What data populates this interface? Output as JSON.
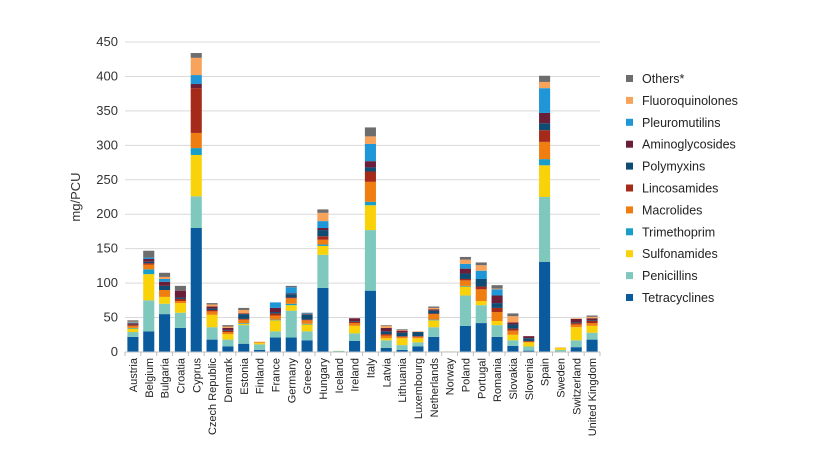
{
  "chart_data": {
    "type": "bar",
    "stacked": true,
    "title": "",
    "xlabel": "",
    "ylabel": "mg/PCU",
    "ylim": [
      0,
      450
    ],
    "yticks": [
      0,
      50,
      100,
      150,
      200,
      250,
      300,
      350,
      400,
      450
    ],
    "grid": true,
    "legend_position": "right",
    "categories": [
      "Austria",
      "Belgium",
      "Bulgaria",
      "Croatia",
      "Cyprus",
      "Czech Republic",
      "Denmark",
      "Estonia",
      "Finland",
      "France",
      "Germany",
      "Greece",
      "Hungary",
      "Iceland",
      "Ireland",
      "Italy",
      "Latvia",
      "Lithuania",
      "Luxembourg",
      "Netherlands",
      "Norway",
      "Poland",
      "Portugal",
      "Romania",
      "Slovakia",
      "Slovenia",
      "Spain",
      "Sweden",
      "Switzerland",
      "United Kingdom"
    ],
    "series": [
      {
        "name": "Tetracyclines",
        "color": "#0a5a9e",
        "values": [
          22,
          30,
          55,
          35,
          180,
          18,
          8,
          12,
          3,
          21,
          21,
          17,
          93,
          0.5,
          16,
          89,
          6,
          3,
          8,
          22,
          0.3,
          38,
          42,
          22,
          9,
          2,
          131,
          0.5,
          7,
          18
        ]
      },
      {
        "name": "Penicillins",
        "color": "#7ec8be",
        "values": [
          7,
          45,
          15,
          22,
          46,
          18,
          10,
          27,
          8,
          9,
          39,
          13,
          48,
          1,
          11,
          88,
          11,
          7,
          6,
          14,
          0.5,
          44,
          26,
          17,
          8,
          6,
          94,
          2.5,
          10,
          10
        ]
      },
      {
        "name": "Sulfonamides",
        "color": "#fad20a",
        "values": [
          5,
          38,
          10,
          14,
          60,
          18,
          8,
          2,
          2,
          16,
          8,
          10,
          13,
          0.2,
          11,
          36,
          3,
          10,
          6,
          10,
          0.1,
          13,
          6,
          6,
          8,
          6,
          46,
          3,
          19,
          10
        ]
      },
      {
        "name": "Trimethoprim",
        "color": "#189ec9",
        "values": [
          1,
          7,
          0,
          0,
          10,
          0,
          0,
          1,
          0,
          1,
          2,
          1,
          2,
          0,
          0,
          5,
          0,
          0,
          0,
          1,
          0,
          1,
          0,
          0,
          0,
          0,
          9,
          0,
          0,
          0
        ]
      },
      {
        "name": "Macrolides",
        "color": "#ef7d10",
        "values": [
          3,
          7,
          10,
          3,
          22,
          5,
          3,
          5,
          1,
          6,
          8,
          5,
          7,
          0,
          4,
          29,
          4,
          2,
          2,
          8,
          0,
          8,
          17,
          13,
          6,
          1,
          25,
          0.5,
          4,
          4
        ]
      },
      {
        "name": "Lincosamides",
        "color": "#a52a1a",
        "values": [
          2,
          2,
          0,
          3,
          65,
          2,
          2,
          1,
          0,
          3,
          1,
          1,
          5,
          0,
          2,
          15,
          2,
          1,
          1,
          1,
          0,
          2,
          4,
          6,
          3,
          1,
          17,
          0,
          2,
          3
        ]
      },
      {
        "name": "Polymyxins",
        "color": "#0e4c73",
        "values": [
          1,
          2,
          6,
          2,
          0,
          2,
          1,
          7,
          0,
          2,
          5,
          7,
          9,
          0,
          1,
          6,
          4,
          5,
          6,
          4,
          0,
          8,
          11,
          7,
          6,
          4,
          10,
          0,
          1,
          1
        ]
      },
      {
        "name": "Aminoglycosides",
        "color": "#6b1e38",
        "values": [
          1,
          4,
          6,
          10,
          6,
          3,
          3,
          1,
          0,
          6,
          1,
          1,
          3,
          0,
          4,
          9,
          5,
          3,
          0,
          2,
          0,
          7,
          0,
          11,
          3,
          3,
          15,
          0,
          5,
          3
        ]
      },
      {
        "name": "Pleuromutilins",
        "color": "#1e96d7",
        "values": [
          1,
          2,
          4,
          0,
          13,
          0,
          0,
          0,
          0,
          8,
          9,
          1,
          10,
          0,
          0,
          25,
          0,
          0,
          0,
          0,
          0,
          7,
          12,
          9,
          0,
          0,
          36,
          0,
          0,
          0
        ]
      },
      {
        "name": "Fluoroquinolones",
        "color": "#f7a35c",
        "values": [
          1,
          0,
          3,
          0,
          25,
          3,
          2,
          5,
          1,
          0,
          0,
          0,
          12,
          0,
          0,
          11,
          3,
          1,
          1,
          2,
          0,
          6,
          8,
          1,
          9,
          0,
          9,
          0,
          1,
          2
        ]
      },
      {
        "name": "Others*",
        "color": "#6d6d6d",
        "values": [
          2,
          10,
          6,
          7,
          7,
          2,
          2,
          3,
          0,
          0,
          2,
          1,
          5,
          0,
          0,
          13,
          1,
          1,
          0,
          2,
          0,
          4,
          4,
          5,
          4,
          0,
          9,
          0,
          0,
          2
        ]
      }
    ]
  }
}
